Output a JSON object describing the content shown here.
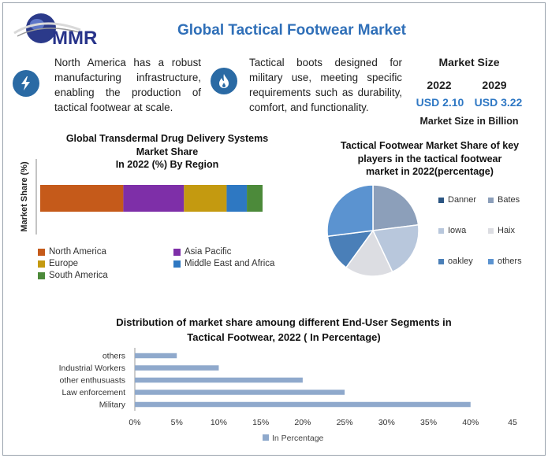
{
  "header": {
    "title": "Global Tactical Footwear Market",
    "logo_text": "MMR"
  },
  "info": {
    "left_text": "North America has a robust manufacturing infrastructure, enabling the production of tactical footwear at scale.",
    "right_text": "Tactical boots designed for military use, meeting specific requirements such as durability, comfort, and functionality.",
    "left_icon": "lightning-icon",
    "right_icon": "flame-icon"
  },
  "market_size": {
    "heading": "Market Size",
    "year1": "2022",
    "year2": "2029",
    "value1": "USD 2.10",
    "value2": "USD 3.22",
    "unit_note": "Market Size in Billion"
  },
  "colors": {
    "title": "#2f6fb8",
    "accent": "#2f78c4",
    "icon_bg": "#2a6aa4"
  },
  "chart_data": [
    {
      "type": "bar",
      "orientation": "horizontal-stacked",
      "title": "Global Transdermal Drug Delivery Systems Market Share In 2022 (%) By Region",
      "title_lines": [
        "Global Transdermal Drug Delivery Systems",
        "Market Share",
        "In 2022 (%) By Region"
      ],
      "ylabel": "Market Share (%)",
      "grid": false,
      "legend": "bottom",
      "series": [
        {
          "name": "North America",
          "value": 37,
          "color": "#c55a1a"
        },
        {
          "name": "Asia Pacific",
          "value": 27,
          "color": "#7e2fa8"
        },
        {
          "name": "Europe",
          "value": 19,
          "color": "#c49a10"
        },
        {
          "name": "Middle East and Africa",
          "value": 9,
          "color": "#2e78c2"
        },
        {
          "name": "South America",
          "value": 7,
          "color": "#4c8a3a"
        }
      ]
    },
    {
      "type": "pie",
      "title": "Tactical Footwear Market Share of key players in the tactical footwear market in 2022(percentage)",
      "title_lines": [
        "Tactical Footwear Market Share of key",
        "players in the tactical footwear",
        "market in 2022(percentage)"
      ],
      "legend": "right",
      "slices": [
        {
          "name": "Bates",
          "value": 23,
          "color": "#8c9fba"
        },
        {
          "name": "Iowa",
          "value": 20,
          "color": "#b8c7dc"
        },
        {
          "name": "Haix",
          "value": 17,
          "color": "#dcdde2"
        },
        {
          "name": "oakley",
          "value": 13,
          "color": "#4a7fb8"
        },
        {
          "name": "others",
          "value": 27,
          "color": "#5b93d0"
        },
        {
          "name": "Danner",
          "value": 0,
          "color": "#2b5582"
        }
      ],
      "legend_order": [
        "Danner",
        "Bates",
        "Iowa",
        "Haix",
        "oakley",
        "others"
      ]
    },
    {
      "type": "bar",
      "orientation": "horizontal",
      "title": "Distribution of market share amoung different End-User Segments in Tactical Footwear, 2022 ( In Percentage)",
      "title_lines": [
        "Distribution of market share amoung different End-User Segments in",
        "Tactical Footwear, 2022 ( In Percentage)"
      ],
      "categories": [
        "Military",
        "Law enforcement",
        "other enthusuasts",
        "Industrial Workers",
        "others"
      ],
      "values": [
        40,
        25,
        20,
        10,
        5
      ],
      "x_ticks": [
        "0%",
        "5%",
        "10%",
        "15%",
        "20%",
        "25%",
        "30%",
        "35%",
        "40%",
        "45"
      ],
      "xlim": [
        0,
        45
      ],
      "series_name": "In Percentage",
      "color": "#8fa9cc",
      "grid": false,
      "legend": "bottom"
    }
  ]
}
